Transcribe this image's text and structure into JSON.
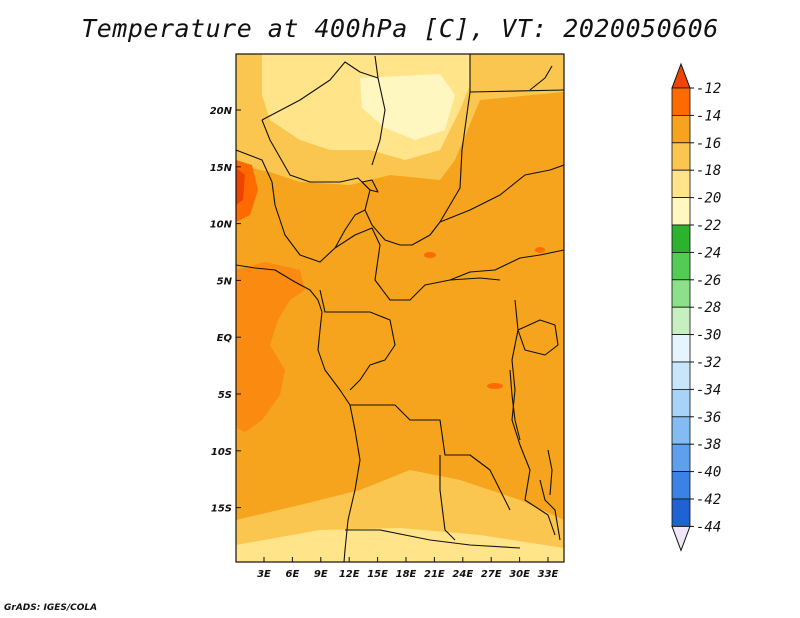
{
  "title": "Temperature at 400hPa [C], VT: 2020050606",
  "footer": "GrADS: IGES/COLA",
  "map": {
    "lat_ticks": [
      "20N",
      "15N",
      "10N",
      "5N",
      "EQ",
      "5S",
      "10S",
      "15S"
    ],
    "lon_ticks": [
      "3E",
      "6E",
      "9E",
      "12E",
      "15E",
      "18E",
      "21E",
      "24E",
      "27E",
      "30E",
      "33E"
    ]
  },
  "colorbar": {
    "labels": [
      "-12",
      "-14",
      "-16",
      "-18",
      "-20",
      "-22",
      "-24",
      "-26",
      "-28",
      "-30",
      "-32",
      "-34",
      "-36",
      "-38",
      "-40",
      "-42",
      "-44"
    ],
    "colors": [
      "#f0e6fa",
      "#0a0a80",
      "#1b47b8",
      "#1f63d2",
      "#3a82e6",
      "#5ea0ee",
      "#82bcf2",
      "#a6d3f7",
      "#c8e6fb",
      "#e6f5fd",
      "#c6f0c0",
      "#8ce08a",
      "#52cc52",
      "#2cb22c",
      "#fff6c0",
      "#ffe48a",
      "#fbc650",
      "#f6a41e",
      "#ff6a00",
      "#ee4400"
    ]
  }
}
